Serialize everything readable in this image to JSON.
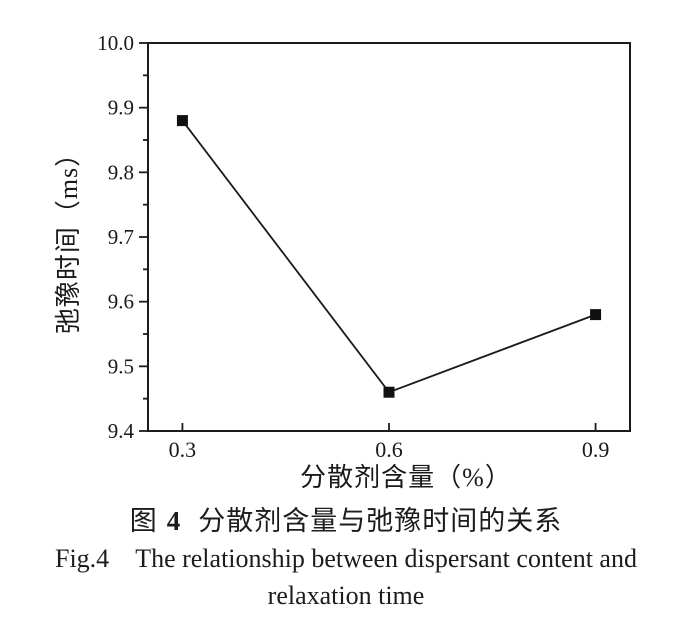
{
  "caption": {
    "cn_fig_label": "图",
    "cn_fig_number": "4",
    "cn_title": "分散剂含量与弛豫时间的关系",
    "en_fig_label": "Fig.4",
    "en_title_line1": "The relationship between dispersant content and",
    "en_title_line2": "relaxation time"
  },
  "chart_data": {
    "type": "line",
    "x": [
      0.3,
      0.6,
      0.9
    ],
    "y": [
      9.88,
      9.46,
      9.58
    ],
    "title": "",
    "xlabel": "分散剂含量（%）",
    "ylabel": "弛豫时间（ms）",
    "xlim": [
      0.25,
      0.95
    ],
    "ylim": [
      9.4,
      10.0
    ],
    "x_ticks": [
      "0.3",
      "0.6",
      "0.9"
    ],
    "x_tick_values": [
      0.3,
      0.6,
      0.9
    ],
    "y_ticks": [
      "9.4",
      "9.5",
      "9.6",
      "9.7",
      "9.8",
      "9.9",
      "10.0"
    ],
    "y_tick_values": [
      9.4,
      9.5,
      9.6,
      9.7,
      9.8,
      9.9,
      10.0
    ],
    "y_minor_step": 0.05,
    "grid": false,
    "legend": null,
    "marker": "filled-square",
    "line_color": "#1a1a1a",
    "marker_color": "#111111",
    "axis_color": "#1a1a1a",
    "background": "#ffffff"
  }
}
